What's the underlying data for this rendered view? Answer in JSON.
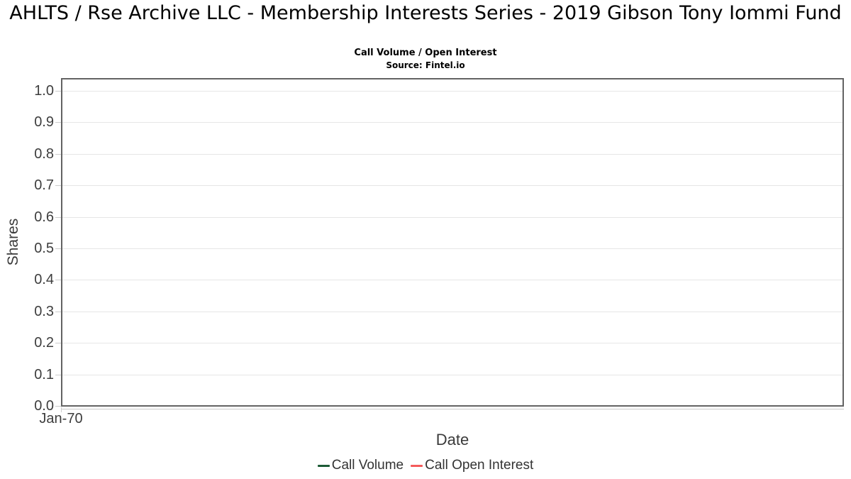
{
  "chart_data": {
    "type": "line",
    "title": "AHLTS / Rse Archive LLC - Membership Interests Series - 2019 Gibson Tony Iommi Fund",
    "subtitle": "Call Volume / Open Interest",
    "source": "Source: Fintel.io",
    "xlabel": "Date",
    "ylabel": "Shares",
    "ylim": [
      0.0,
      1.0
    ],
    "ytick_step": 0.1,
    "yticks": [
      "1.0",
      "0.9",
      "0.8",
      "0.7",
      "0.6",
      "0.5",
      "0.4",
      "0.3",
      "0.2",
      "0.1",
      "0.0"
    ],
    "xticks": [
      "Jan-70"
    ],
    "grid": true,
    "legend_position": "bottom",
    "series": [
      {
        "name": "Call Volume",
        "color": "#1d5b36",
        "x": [],
        "values": []
      },
      {
        "name": "Call Open Interest",
        "color": "#f45b5b",
        "x": [],
        "values": []
      }
    ]
  },
  "colors": {
    "plot_border": "#636363",
    "gridline": "#e6e6e6",
    "tick": "#cccccc",
    "tick_label": "#3d3d3d",
    "axis_title": "#3a3a3a",
    "legend_text": "#333333"
  }
}
